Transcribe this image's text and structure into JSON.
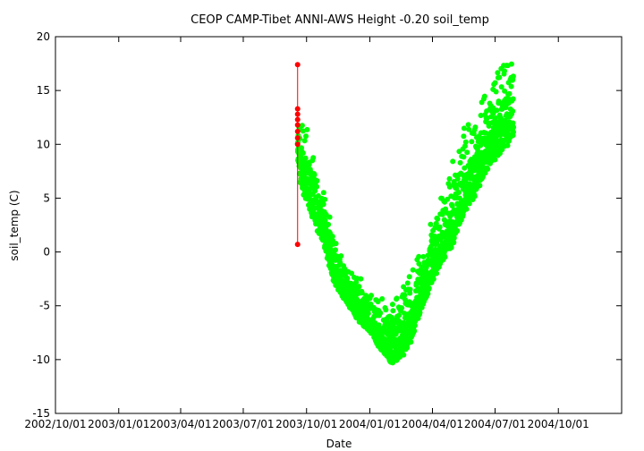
{
  "chart_data": {
    "type": "scatter",
    "title": "CEOP CAMP-Tibet ANNI-AWS Height -0.20 soil_temp",
    "xlabel": "Date",
    "ylabel": "soil_temp (C)",
    "ylim": [
      -15,
      20
    ],
    "yticks": [
      -15,
      -10,
      -5,
      0,
      5,
      10,
      15,
      20
    ],
    "xlim": [
      "2002-10-01",
      "2005-01-01"
    ],
    "xticks": [
      "2002/10/01",
      "2003/01/01",
      "2003/04/01",
      "2003/07/01",
      "2003/10/01",
      "2004/01/01",
      "2004/04/01",
      "2004/07/01",
      "2004/10/01"
    ],
    "grid": false,
    "colors": {
      "main": "#00ff00",
      "flagged": "#ff0000"
    },
    "series": [
      {
        "color": "#00ff00",
        "envelope": [
          {
            "x": "2003-09-18",
            "min": 8.5,
            "max": 12.5
          },
          {
            "x": "2003-09-22",
            "min": 6.0,
            "max": 14.0
          },
          {
            "x": "2003-09-28",
            "min": 5.0,
            "max": 12.0
          },
          {
            "x": "2003-10-05",
            "min": 4.0,
            "max": 11.0
          },
          {
            "x": "2003-10-15",
            "min": 2.0,
            "max": 9.0
          },
          {
            "x": "2003-10-25",
            "min": 1.0,
            "max": 7.5
          },
          {
            "x": "2003-11-01",
            "min": -1.0,
            "max": 5.0
          },
          {
            "x": "2003-11-10",
            "min": -3.0,
            "max": 2.0
          },
          {
            "x": "2003-11-20",
            "min": -4.0,
            "max": 0.0
          },
          {
            "x": "2003-12-01",
            "min": -5.0,
            "max": -1.5
          },
          {
            "x": "2003-12-15",
            "min": -6.5,
            "max": -2.0
          },
          {
            "x": "2004-01-01",
            "min": -7.5,
            "max": -3.5
          },
          {
            "x": "2004-01-15",
            "min": -9.0,
            "max": -4.0
          },
          {
            "x": "2004-02-01",
            "min": -10.5,
            "max": -4.5
          },
          {
            "x": "2004-02-15",
            "min": -10.0,
            "max": -3.0
          },
          {
            "x": "2004-03-01",
            "min": -8.5,
            "max": -1.0
          },
          {
            "x": "2004-03-15",
            "min": -5.5,
            "max": 1.0
          },
          {
            "x": "2004-04-01",
            "min": -3.0,
            "max": 3.0
          },
          {
            "x": "2004-04-15",
            "min": -1.0,
            "max": 6.0
          },
          {
            "x": "2004-05-01",
            "min": 0.5,
            "max": 9.5
          },
          {
            "x": "2004-05-15",
            "min": 3.0,
            "max": 13.0
          },
          {
            "x": "2004-06-01",
            "min": 5.0,
            "max": 13.0
          },
          {
            "x": "2004-06-15",
            "min": 7.0,
            "max": 15.5
          },
          {
            "x": "2004-07-01",
            "min": 8.5,
            "max": 17.0
          },
          {
            "x": "2004-07-15",
            "min": 9.5,
            "max": 19.5
          },
          {
            "x": "2004-07-28",
            "min": 10.5,
            "max": 18.5
          }
        ]
      },
      {
        "color": "#ff0000",
        "points": [
          {
            "x": "2003-09-18",
            "y": 17.4
          },
          {
            "x": "2003-09-18",
            "y": 0.7
          },
          {
            "x": "2003-09-18",
            "y": 13.3
          },
          {
            "x": "2003-09-18",
            "y": 12.8
          },
          {
            "x": "2003-09-18",
            "y": 12.3
          },
          {
            "x": "2003-09-18",
            "y": 11.8
          },
          {
            "x": "2003-09-18",
            "y": 11.2
          },
          {
            "x": "2003-09-18",
            "y": 10.6
          },
          {
            "x": "2003-09-18",
            "y": 10.0
          }
        ]
      }
    ]
  }
}
